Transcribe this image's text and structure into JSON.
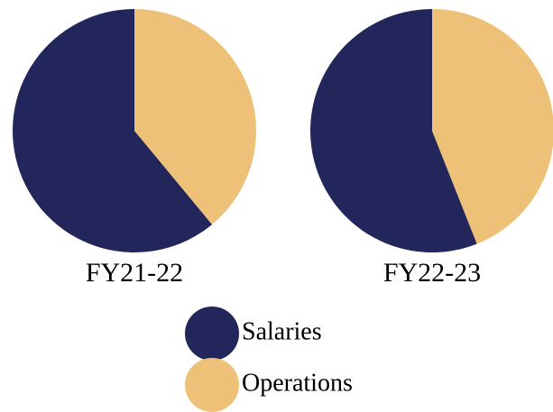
{
  "chart_data": [
    {
      "type": "pie",
      "title": "FY21-22",
      "categories": [
        "Salaries",
        "Operations"
      ],
      "values": [
        61,
        39
      ],
      "colors": [
        "#22265a",
        "#edc278"
      ]
    },
    {
      "type": "pie",
      "title": "FY22-23",
      "categories": [
        "Salaries",
        "Operations"
      ],
      "values": [
        56,
        44
      ],
      "colors": [
        "#22265a",
        "#edc278"
      ]
    }
  ]
}
